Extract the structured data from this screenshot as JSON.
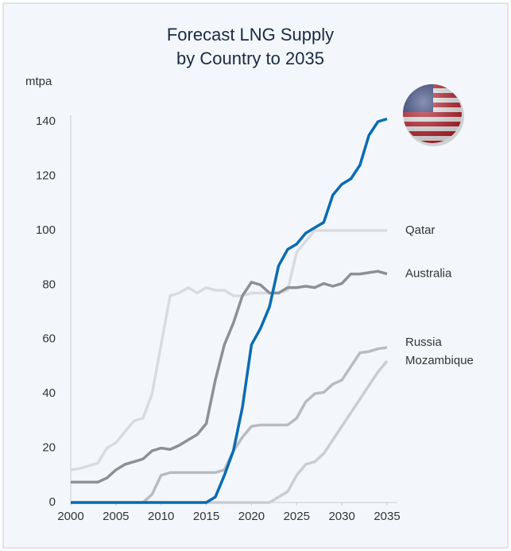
{
  "chart_data": {
    "type": "line",
    "title": [
      "Forecast LNG Supply",
      "by Country to 2035"
    ],
    "y_label": "mtpa",
    "x": [
      2000,
      2001,
      2002,
      2003,
      2004,
      2005,
      2006,
      2007,
      2008,
      2009,
      2010,
      2011,
      2012,
      2013,
      2014,
      2015,
      2016,
      2017,
      2018,
      2019,
      2020,
      2021,
      2022,
      2023,
      2024,
      2025,
      2026,
      2027,
      2028,
      2029,
      2030,
      2031,
      2032,
      2033,
      2034,
      2035
    ],
    "xlim": [
      2000,
      2035
    ],
    "xticks": [
      2000,
      2005,
      2010,
      2015,
      2020,
      2025,
      2030,
      2035
    ],
    "ylim": [
      0,
      140
    ],
    "yticks": [
      0,
      20,
      40,
      60,
      80,
      100,
      120,
      140
    ],
    "grid": false,
    "series": [
      {
        "name": "Qatar",
        "color": "#d9dbde",
        "values": [
          12,
          12.5,
          13.5,
          14.5,
          20,
          22,
          26,
          30,
          31,
          40,
          58,
          76,
          77,
          79,
          77,
          79,
          78,
          78,
          76,
          76,
          77,
          77,
          77,
          77,
          78,
          92,
          96,
          100,
          100,
          100,
          100,
          100,
          100,
          100,
          100,
          100
        ]
      },
      {
        "name": "Australia",
        "color": "#8e9093",
        "values": [
          7.5,
          7.5,
          7.5,
          7.5,
          9,
          12,
          14,
          15,
          16,
          19,
          20,
          19.5,
          21,
          23,
          25,
          29,
          45,
          58,
          66,
          76,
          81,
          80,
          77,
          77,
          79,
          79,
          79.5,
          79,
          80.5,
          79.5,
          80.5,
          84,
          84,
          84.5,
          85,
          84
        ]
      },
      {
        "name": "Russia",
        "color": "#b9bbbe",
        "values": [
          0,
          0,
          0,
          0,
          0,
          0,
          0,
          0,
          0,
          3,
          10,
          11,
          11,
          11,
          11,
          11,
          11,
          12,
          19,
          24,
          28,
          28.5,
          28.5,
          28.5,
          28.5,
          31,
          37,
          40,
          40.5,
          43.5,
          45,
          50,
          55,
          55.5,
          56.5,
          57
        ]
      },
      {
        "name": "Mozambique",
        "color": "#cbcdd0",
        "values": [
          0,
          0,
          0,
          0,
          0,
          0,
          0,
          0,
          0,
          0,
          0,
          0,
          0,
          0,
          0,
          0,
          0,
          0,
          0,
          0,
          0,
          0,
          0,
          2,
          4,
          10,
          14,
          15,
          18,
          23,
          28,
          33,
          38,
          43,
          48,
          52
        ]
      },
      {
        "color": "#0a6bb3",
        "values": [
          0,
          0,
          0,
          0,
          0,
          0,
          0,
          0,
          0,
          0,
          0,
          0,
          0,
          0,
          0,
          0,
          2,
          10,
          19,
          35,
          58,
          64,
          72,
          87,
          93,
          95,
          99,
          101,
          103,
          113,
          117,
          119,
          124,
          135,
          140,
          141
        ]
      }
    ]
  }
}
